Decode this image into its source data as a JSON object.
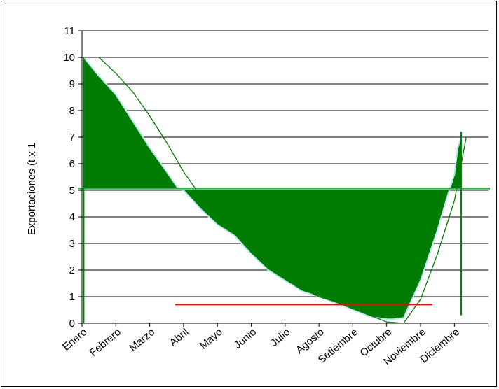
{
  "chart_data": {
    "type": "area",
    "title": "",
    "xlabel": "",
    "ylabel": "Exportaciones (t x 1",
    "ylim": [
      0,
      11
    ],
    "yticks": [
      0,
      1,
      2,
      3,
      4,
      5,
      6,
      7,
      8,
      9,
      10,
      11
    ],
    "categories": [
      "Enero",
      "Febrero",
      "Marzo",
      "Abril",
      "Mayo",
      "Junio",
      "Julio",
      "Agosto",
      "Setiembre",
      "Octubre",
      "Noviembre",
      "Diciembre"
    ],
    "grid": true,
    "baseline": 5.05,
    "series": [
      {
        "x": [
          0.05,
          0.5,
          1.0,
          1.5,
          2.0,
          2.5,
          2.85,
          3.0,
          3.5,
          4.0,
          4.5,
          5.0,
          5.5,
          6.0,
          6.5,
          7.0,
          7.5,
          8.0,
          8.5,
          9.0,
          9.2,
          9.5,
          10.0,
          10.5,
          10.8,
          11.0,
          11.1,
          11.2
        ],
        "values": [
          10.0,
          9.3,
          8.6,
          7.6,
          6.6,
          5.7,
          5.05,
          5.0,
          4.3,
          3.7,
          3.3,
          2.6,
          2.0,
          1.6,
          1.2,
          1.0,
          0.75,
          0.5,
          0.25,
          0.15,
          0.15,
          0.2,
          1.6,
          3.5,
          4.8,
          5.6,
          6.6,
          7.0
        ],
        "color": "#007c00"
      },
      {
        "x": [
          0.5,
          1.0,
          1.5,
          2.0,
          2.5,
          3.0,
          3.5,
          4.0,
          4.5,
          5.0,
          5.5,
          6.0,
          6.5,
          7.0,
          7.5,
          8.0,
          8.5,
          9.0,
          9.5,
          10.0,
          10.5,
          11.0,
          11.35
        ],
        "values": [
          10.0,
          9.4,
          8.7,
          7.8,
          6.8,
          5.7,
          4.8,
          4.1,
          3.6,
          2.9,
          2.2,
          1.7,
          1.3,
          1.0,
          0.8,
          0.55,
          0.3,
          0.05,
          0.0,
          0.9,
          2.6,
          4.6,
          7.0
        ],
        "color": "#007c00"
      },
      {
        "x": [
          2.75,
          10.35
        ],
        "values": [
          0.7,
          0.7
        ],
        "color": "#ff0000"
      }
    ]
  }
}
